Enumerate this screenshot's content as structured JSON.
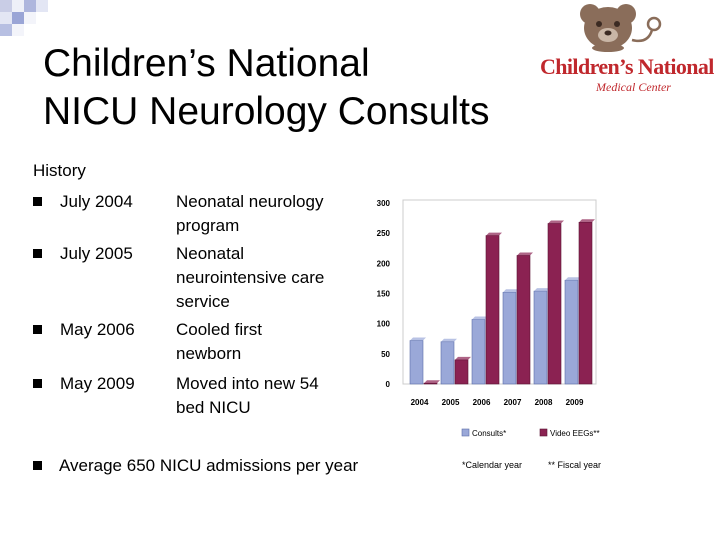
{
  "title": {
    "line1": "Children’s National",
    "line2": "NICU Neurology Consults"
  },
  "logo": {
    "name": "Children’s National",
    "subtitle": "Medical Center"
  },
  "history": {
    "heading": "History",
    "items": [
      {
        "date": "July 2004",
        "lines": [
          "Neonatal neurology",
          "program"
        ]
      },
      {
        "date": "July 2005",
        "lines": [
          "Neonatal",
          "neurointensive care",
          "service"
        ]
      },
      {
        "date": "May 2006",
        "lines": [
          "Cooled first",
          "newborn"
        ]
      },
      {
        "date": "May 2009",
        "lines": [
          "Moved into new 54",
          "bed NICU"
        ]
      }
    ],
    "average": "Average 650 NICU admissions per year"
  },
  "colors": {
    "consults": "#9aa8d8",
    "video_eegs": "#8b2252",
    "logo_red": "#c0282d"
  },
  "chart_data": {
    "type": "bar",
    "categories": [
      "2004",
      "2005",
      "2006",
      "2007",
      "2008",
      "2009"
    ],
    "series": [
      {
        "name": "Consults*",
        "values": [
          72,
          70,
          107,
          152,
          154,
          172
        ]
      },
      {
        "name": "Video EEGs**",
        "values": [
          0,
          40,
          246,
          213,
          266,
          268
        ]
      }
    ],
    "ylim": [
      0,
      300
    ],
    "yticks": [
      "0",
      "50",
      "100",
      "150",
      "200",
      "250",
      "300"
    ],
    "legend": "bottom",
    "grid": false
  },
  "footnotes": {
    "calendar": "*Calendar year",
    "fiscal": "** Fiscal year"
  }
}
